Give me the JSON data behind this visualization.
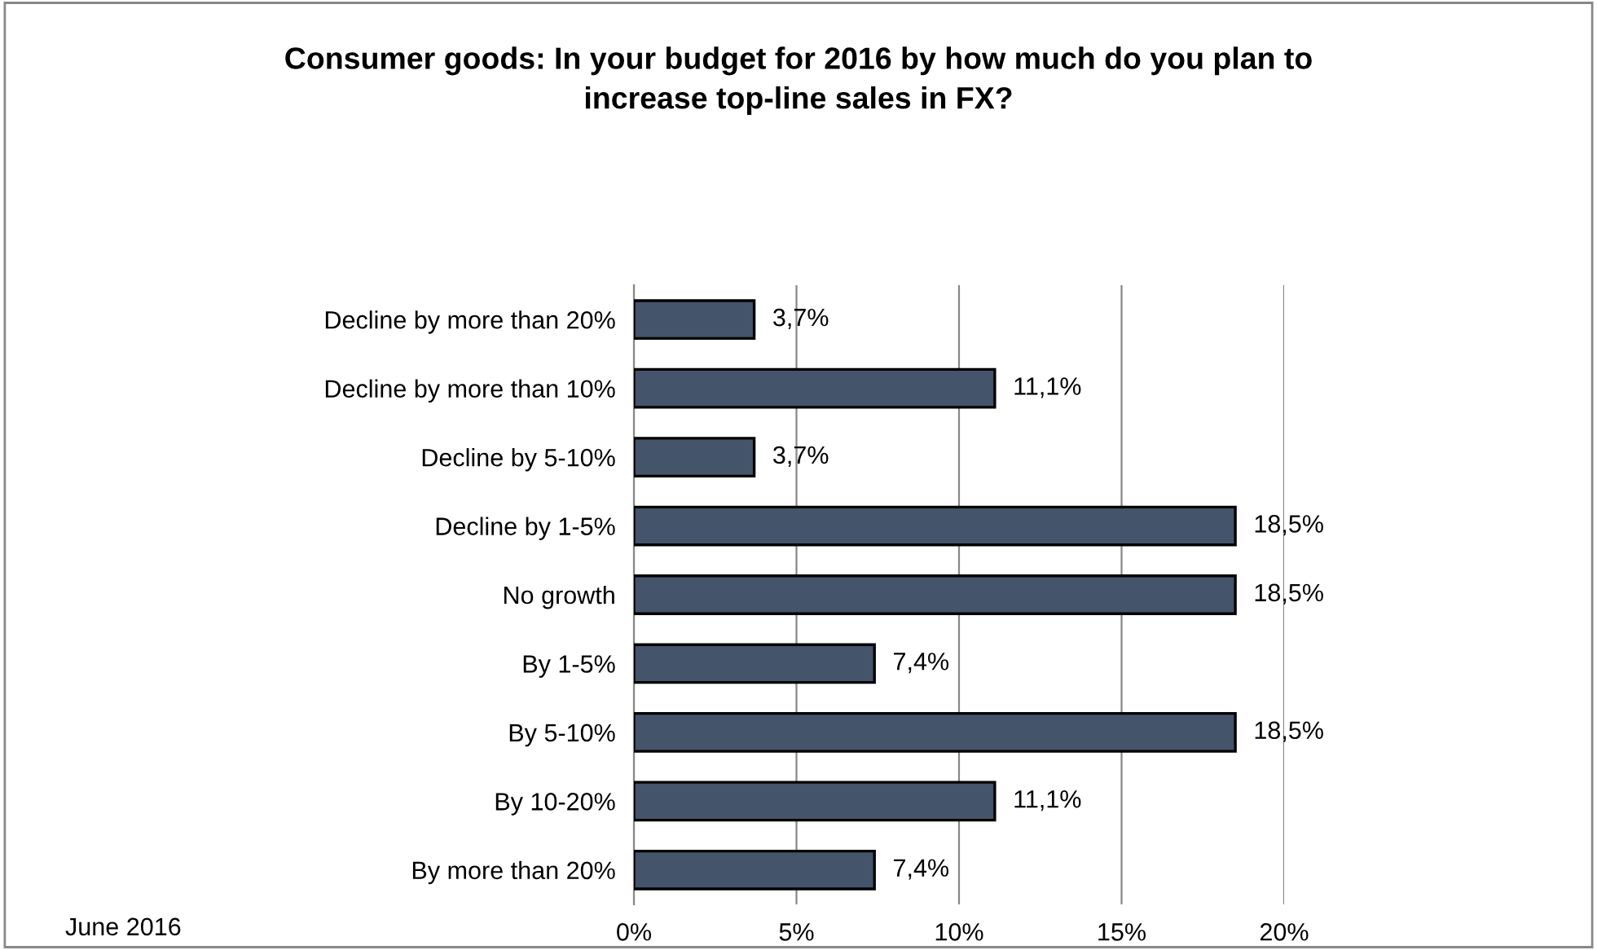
{
  "chart_data": {
    "type": "bar",
    "orientation": "horizontal",
    "title": "Consumer goods: In your budget for 2016 by how much do you plan to\nincrease top-line sales in FX?",
    "categories": [
      "Decline by more than 20%",
      "Decline by more than 10%",
      "Decline by 5-10%",
      "Decline by 1-5%",
      "No growth",
      "By 1-5%",
      "By 5-10%",
      "By 10-20%",
      "By more than 20%"
    ],
    "values": [
      3.7,
      11.1,
      3.7,
      18.5,
      18.5,
      7.4,
      18.5,
      11.1,
      7.4
    ],
    "value_labels": [
      "3,7%",
      "11,1%",
      "3,7%",
      "18,5%",
      "18,5%",
      "7,4%",
      "18,5%",
      "11,1%",
      "7,4%"
    ],
    "color": "#44546a",
    "xlim": [
      0,
      20
    ],
    "xticks": [
      {
        "value": 0,
        "label": "0%"
      },
      {
        "value": 5,
        "label": "5%"
      },
      {
        "value": 10,
        "label": "10%"
      },
      {
        "value": 15,
        "label": "15%"
      },
      {
        "value": 20,
        "label": "20%"
      }
    ],
    "grid": "x",
    "legend": false,
    "annotations": [
      "June 2016"
    ]
  }
}
